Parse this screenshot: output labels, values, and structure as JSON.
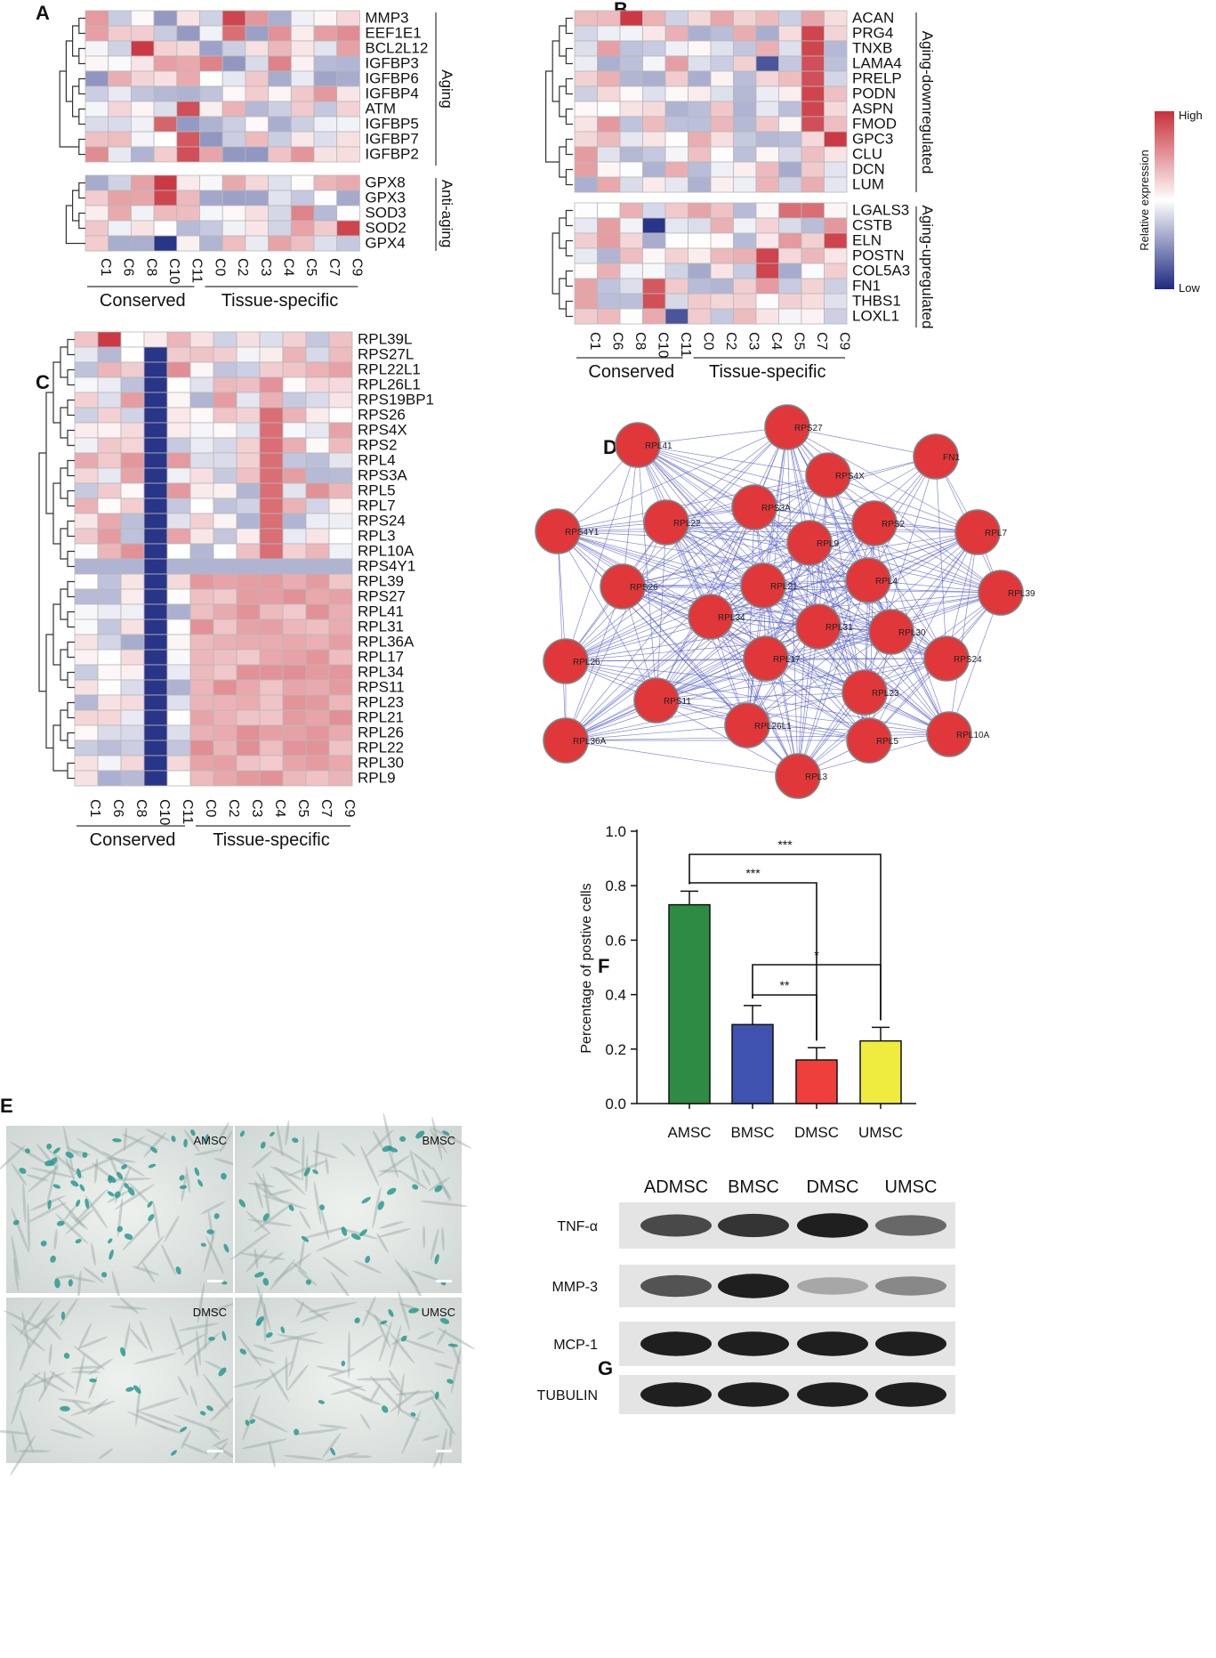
{
  "panels": {
    "A": {
      "letter": "A",
      "clusters": [
        "C1",
        "C6",
        "C8",
        "C10",
        "C11",
        "C0",
        "C2",
        "C3",
        "C4",
        "C5",
        "C7",
        "C9"
      ],
      "groups": [
        "Conserved",
        "Tissue-specific"
      ],
      "blocks": [
        {
          "label": "Aging",
          "genes": [
            "MMP3",
            "EEF1E1",
            "BCL2L12",
            "IGFBP3",
            "IGFBP6",
            "IGFBP4",
            "ATM",
            "IGFBP5",
            "IGFBP7",
            "IGFBP2"
          ]
        },
        {
          "label": "Anti-aging",
          "genes": [
            "GPX8",
            "GPX3",
            "SOD3",
            "SOD2",
            "GPX4"
          ]
        }
      ]
    },
    "B": {
      "letter": "B",
      "clusters": [
        "C1",
        "C6",
        "C8",
        "C10",
        "C11",
        "C0",
        "C2",
        "C3",
        "C4",
        "C5",
        "C7",
        "C9"
      ],
      "groups": [
        "Conserved",
        "Tissue-specific"
      ],
      "blocks": [
        {
          "label": "Aging-downregulated",
          "genes": [
            "ACAN",
            "PRG4",
            "TNXB",
            "LAMA4",
            "PRELP",
            "PODN",
            "ASPN",
            "FMOD",
            "GPC3",
            "CLU",
            "DCN",
            "LUM"
          ]
        },
        {
          "label": "Aging-upregulated",
          "genes": [
            "LGALS3",
            "CSTB",
            "ELN",
            "POSTN",
            "COL5A3",
            "FN1",
            "THBS1",
            "LOXL1"
          ]
        }
      ],
      "legend": {
        "title": "Relative expression",
        "high": "High",
        "low": "Low",
        "high_color": "#c8303a",
        "low_color": "#1e2a80"
      }
    },
    "C": {
      "letter": "C",
      "clusters": [
        "C1",
        "C6",
        "C8",
        "C10",
        "C11",
        "C0",
        "C2",
        "C3",
        "C4",
        "C5",
        "C7",
        "C9"
      ],
      "groups": [
        "Conserved",
        "Tissue-specific"
      ],
      "genes": [
        "RPL39L",
        "RPS27L",
        "RPL22L1",
        "RPL26L1",
        "RPS19BP1",
        "RPS26",
        "RPS4X",
        "RPS2",
        "RPL4",
        "RPS3A",
        "RPL5",
        "RPL7",
        "RPS24",
        "RPL3",
        "RPL10A",
        "RPS4Y1",
        "RPL39",
        "RPS27",
        "RPL41",
        "RPL31",
        "RPL36A",
        "RPL17",
        "RPL34",
        "RPS11",
        "RPL23",
        "RPL21",
        "RPL26",
        "RPL22",
        "RPL30",
        "RPL9"
      ]
    },
    "D": {
      "letter": "D",
      "nodes": [
        "RPL41",
        "RPS27",
        "FN1",
        "RPS4X",
        "RPS4Y1",
        "RPL22",
        "RPS3A",
        "RPS2",
        "RPL7",
        "RPL9",
        "RPS26",
        "RPL21",
        "RPL4",
        "RPL39",
        "RPL34",
        "RPL31",
        "RPL30",
        "RPL26",
        "RPL17",
        "RPS24",
        "RPS11",
        "RPL23",
        "RPL36A",
        "RPL26L1",
        "RPL5",
        "RPL10A",
        "RPL3"
      ],
      "node_color": "#e0383a",
      "edge_color": "#5a63c8"
    },
    "E": {
      "letter": "E",
      "images": [
        "AMSC",
        "BMSC",
        "DMSC",
        "UMSC"
      ]
    },
    "F": {
      "letter": "F",
      "significance": [
        "***",
        "***",
        "*",
        "**"
      ]
    },
    "G": {
      "letter": "G",
      "lanes": [
        "ADMSC",
        "BMSC",
        "DMSC",
        "UMSC"
      ],
      "proteins": [
        "TNF-α",
        "MMP-3",
        "MCP-1",
        "TUBULIN"
      ],
      "band_intensity": [
        [
          0.75,
          0.85,
          0.95,
          0.6
        ],
        [
          0.7,
          0.95,
          0.3,
          0.45
        ],
        [
          0.95,
          0.95,
          0.95,
          0.95
        ],
        [
          0.95,
          0.95,
          0.95,
          0.95
        ]
      ]
    }
  },
  "chart_data": {
    "type": "bar",
    "categories": [
      "AMSC",
      "BMSC",
      "DMSC",
      "UMSC"
    ],
    "values": [
      0.73,
      0.29,
      0.16,
      0.23
    ],
    "errors": [
      0.05,
      0.07,
      0.045,
      0.05
    ],
    "colors": [
      "#2e8b43",
      "#3f52b0",
      "#ee3f3d",
      "#f0ec3f"
    ],
    "ylabel": "Percentage of postive cells",
    "ylim": [
      0,
      1.0
    ],
    "yticks": [
      "0.0",
      "0.2",
      "0.4",
      "0.6",
      "0.8",
      "1.0"
    ]
  }
}
